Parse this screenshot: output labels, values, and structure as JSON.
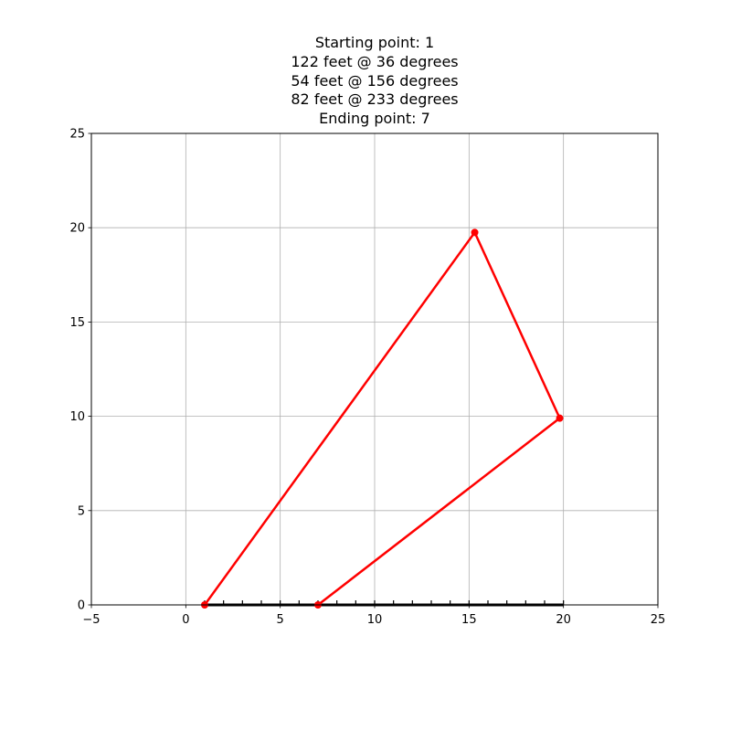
{
  "chart_data": {
    "type": "line",
    "title_lines": [
      "Starting point: 1",
      "122 feet @ 36 degrees",
      "54 feet @ 156 degrees",
      "82 feet @ 233 degrees",
      "Ending point: 7"
    ],
    "xlim": [
      -5,
      25
    ],
    "ylim": [
      0,
      25
    ],
    "xticks": [
      -5,
      0,
      5,
      10,
      15,
      20,
      25
    ],
    "yticks": [
      0,
      5,
      10,
      15,
      20,
      25
    ],
    "grid": true,
    "series": [
      {
        "color": "#ff0000",
        "points": [
          {
            "x": 1.0,
            "y": 0.0
          },
          {
            "x": 15.3,
            "y": 19.75
          },
          {
            "x": 19.8,
            "y": 9.9
          },
          {
            "x": 7.0,
            "y": 0.0
          }
        ]
      }
    ],
    "number_line": {
      "from": 1,
      "to": 20,
      "tick_step": 1,
      "color": "#000000"
    }
  }
}
